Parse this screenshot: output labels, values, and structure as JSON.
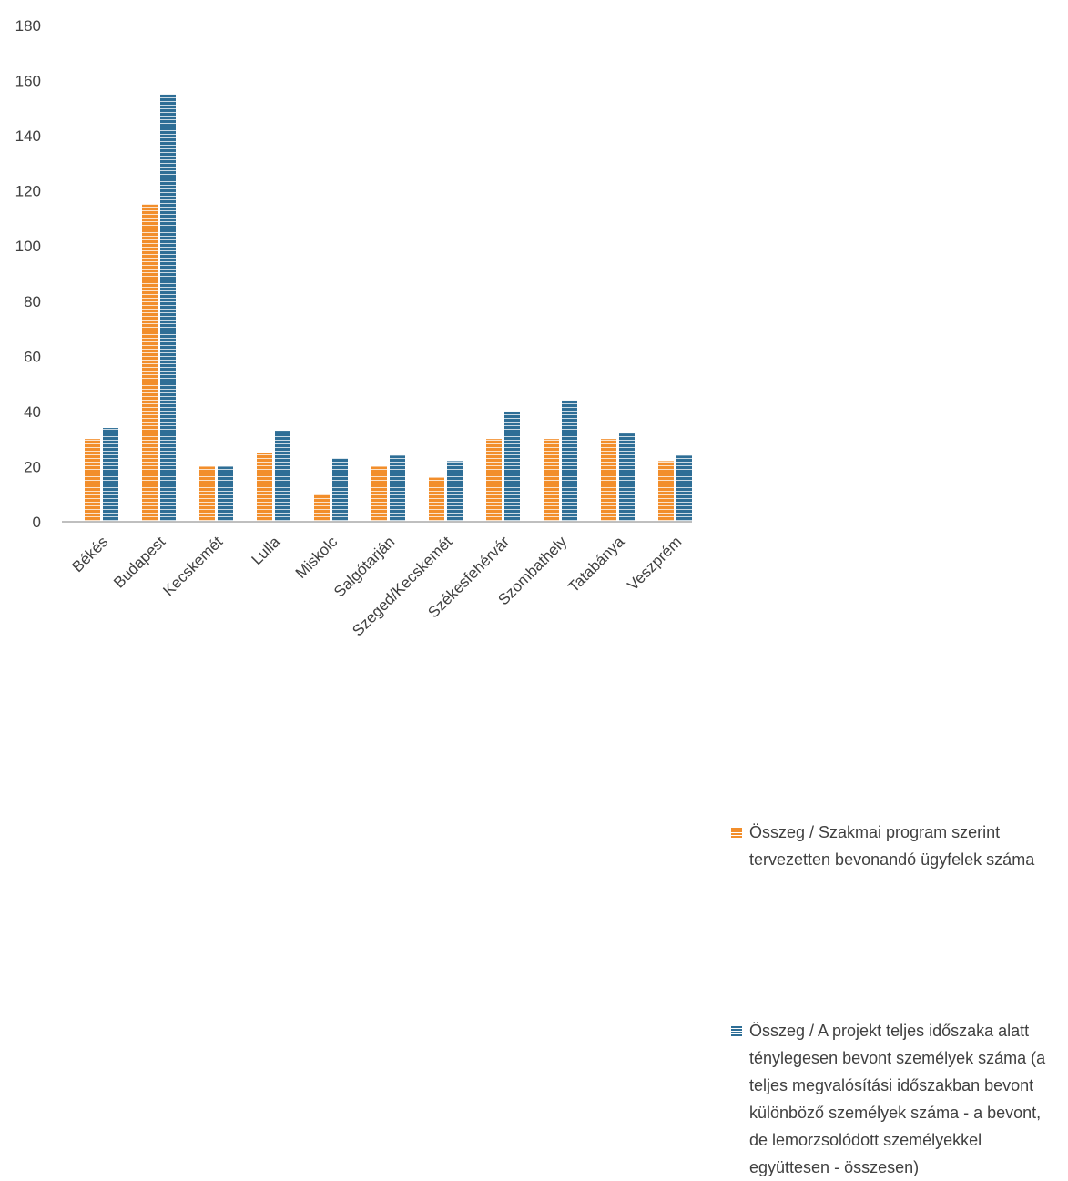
{
  "chart_data": {
    "type": "bar",
    "title": "",
    "xlabel": "",
    "ylabel": "",
    "ylim": [
      0,
      180
    ],
    "yticks": [
      0,
      20,
      40,
      60,
      80,
      100,
      120,
      140,
      160,
      180
    ],
    "grid": false,
    "legend_position": "right",
    "bar_style": "horizontal-striped",
    "categories": [
      "Békés",
      "Budapest",
      "Kecskemét",
      "Lulla",
      "Miskolc",
      "Salgótarján",
      "Szeged/Kecskemét",
      "Székesfehérvár",
      "Szombathely",
      "Tatabánya",
      "Veszprém"
    ],
    "series": [
      {
        "name": "Összeg / Szakmai program szerint tervezetten bevonandó ügyfelek száma",
        "color": "#F28E2B",
        "values": [
          30,
          115,
          20,
          25,
          10,
          20,
          16,
          30,
          30,
          30,
          22
        ]
      },
      {
        "name": "Összeg / A projekt teljes időszaka alatt ténylegesen bevont személyek száma  (a teljes megvalósítási időszakban bevont különböző személyek száma - a bevont, de lemorzsolódott személyekkel együttesen -  összesen)",
        "color": "#2E6E96",
        "values": [
          34,
          155,
          20,
          33,
          23,
          24,
          22,
          40,
          44,
          32,
          24
        ]
      }
    ]
  }
}
